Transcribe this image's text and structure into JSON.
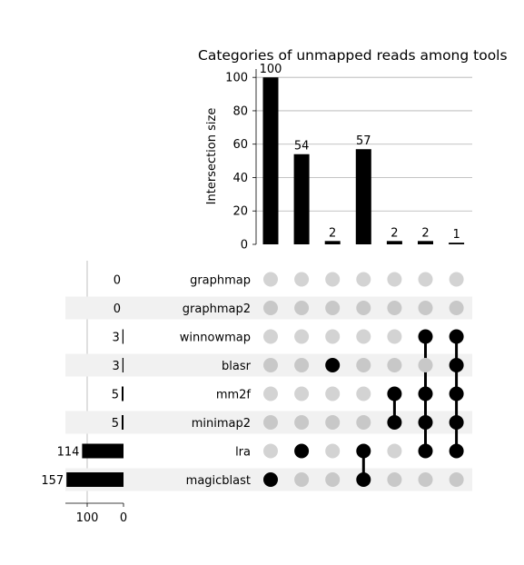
{
  "chart_data": {
    "type": "upset",
    "title": "Categories of unmapped reads among tools",
    "ylabel": "Intersection size",
    "ylim": [
      0,
      105
    ],
    "yticks": [
      0,
      20,
      40,
      60,
      80,
      100
    ],
    "grid": true,
    "sets": [
      {
        "name": "graphmap",
        "size": 0
      },
      {
        "name": "graphmap2",
        "size": 0
      },
      {
        "name": "winnowmap",
        "size": 3
      },
      {
        "name": "blasr",
        "size": 3
      },
      {
        "name": "mm2f",
        "size": 5
      },
      {
        "name": "minimap2",
        "size": 5
      },
      {
        "name": "lra",
        "size": 114
      },
      {
        "name": "magicblast",
        "size": 157
      }
    ],
    "set_size_ticks": [
      100,
      0
    ],
    "set_size_xlim": [
      160,
      0
    ],
    "intersections": [
      {
        "value": 100,
        "members": [
          "magicblast"
        ]
      },
      {
        "value": 54,
        "members": [
          "lra"
        ]
      },
      {
        "value": 2,
        "members": [
          "blasr"
        ]
      },
      {
        "value": 57,
        "members": [
          "lra",
          "magicblast"
        ]
      },
      {
        "value": 2,
        "members": [
          "mm2f",
          "minimap2"
        ]
      },
      {
        "value": 2,
        "members": [
          "winnowmap",
          "mm2f",
          "minimap2",
          "lra"
        ]
      },
      {
        "value": 1,
        "members": [
          "winnowmap",
          "blasr",
          "mm2f",
          "minimap2",
          "lra"
        ]
      }
    ],
    "colors": {
      "bar": "#000000",
      "dot_active": "#000000",
      "dot_inactive": "#c8c8c8",
      "dot_inactive_light": "#d3d3d3",
      "stripe": "#f1f1f1",
      "grid": "#b0b0b0"
    }
  }
}
